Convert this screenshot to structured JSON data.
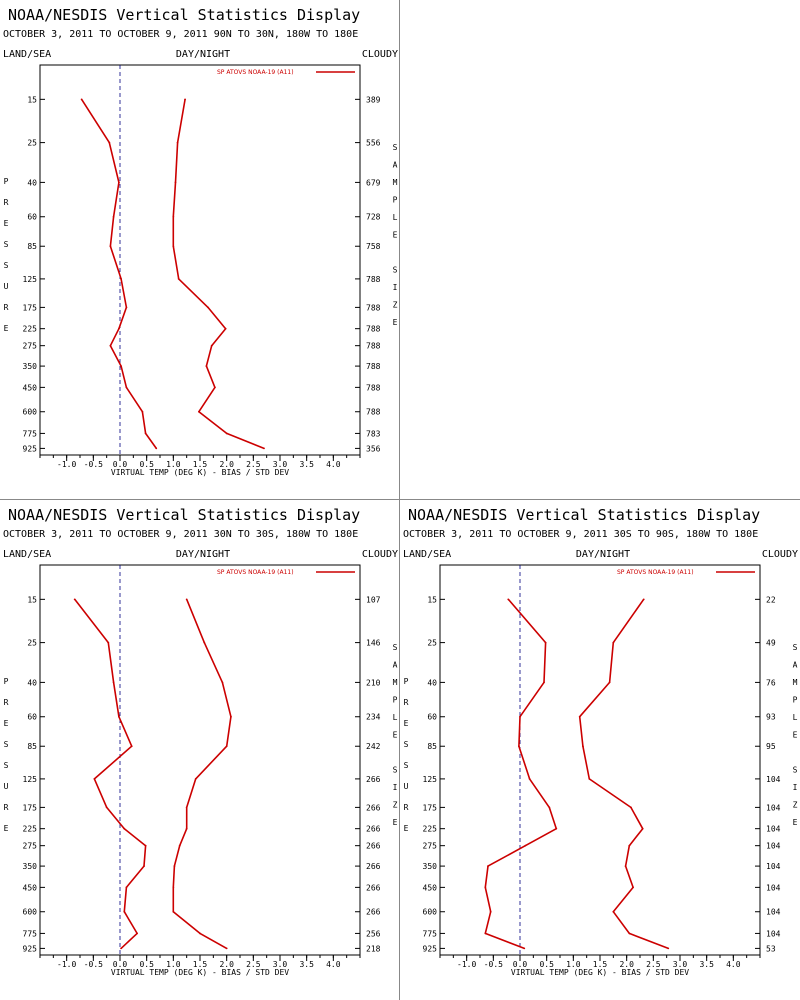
{
  "colors": {
    "series": "#cc0000",
    "axis": "#000000",
    "zero_line": "#000080",
    "divider": "#888888",
    "background": "#ffffff"
  },
  "common": {
    "title": "NOAA/NESDIS Vertical Statistics Display",
    "left_header": "LAND/SEA",
    "center_header": "DAY/NIGHT",
    "right_header": "CLOUDY",
    "xlabel": "VIRTUAL TEMP (DEG K) - BIAS / STD DEV",
    "ylabel": "PRESSURE",
    "right_label": "SAMPLE SIZE",
    "legend": "SP ATOVS NOAA-19 (A11)",
    "xticks": [
      "-1.0",
      "-0.5",
      "0.0",
      "0.5",
      "1.0",
      "1.5",
      "2.0",
      "2.5",
      "3.0",
      "3.5",
      "4.0"
    ]
  },
  "chart_data": [
    {
      "type": "line",
      "subtitle": "OCTOBER 3, 2011 TO OCTOBER 9, 2011  90N TO 30N, 180W TO 180E",
      "y": [
        15,
        25,
        40,
        60,
        85,
        125,
        175,
        225,
        275,
        350,
        450,
        600,
        775,
        925
      ],
      "y_scale": "log",
      "xlim": [
        -1.5,
        4.5
      ],
      "series": [
        {
          "name": "SP ATOVS NOAA-19 (A11)",
          "metric": "bias",
          "values": [
            -0.72,
            -0.2,
            -0.02,
            -0.12,
            -0.18,
            0.02,
            0.12,
            -0.02,
            -0.18,
            0.02,
            0.12,
            0.42,
            0.48,
            0.68
          ]
        },
        {
          "name": "SP ATOVS NOAA-19 (A11)",
          "metric": "std_dev",
          "values": [
            1.22,
            1.08,
            1.04,
            1.0,
            1.0,
            1.1,
            1.65,
            1.98,
            1.72,
            1.62,
            1.78,
            1.48,
            2.0,
            2.7
          ]
        }
      ],
      "sample_size": [
        "389",
        "556",
        "679",
        "728",
        "758",
        "788",
        "788",
        "788",
        "788",
        "788",
        "788",
        "788",
        "783",
        "356"
      ]
    },
    {
      "type": "line",
      "subtitle": "OCTOBER 3, 2011 TO OCTOBER 9, 2011  30N TO 30S, 180W TO 180E",
      "y": [
        15,
        25,
        40,
        60,
        85,
        125,
        175,
        225,
        275,
        350,
        450,
        600,
        775,
        925
      ],
      "y_scale": "log",
      "xlim": [
        -1.5,
        4.5
      ],
      "series": [
        {
          "name": "SP ATOVS NOAA-19 (A11)",
          "metric": "bias",
          "values": [
            -0.85,
            -0.22,
            -0.12,
            -0.02,
            0.22,
            -0.48,
            -0.25,
            0.08,
            0.48,
            0.45,
            0.12,
            0.08,
            0.32,
            0.02
          ]
        },
        {
          "name": "SP ATOVS NOAA-19 (A11)",
          "metric": "std_dev",
          "values": [
            1.25,
            1.58,
            1.92,
            2.08,
            2.0,
            1.42,
            1.25,
            1.25,
            1.12,
            1.02,
            1.0,
            1.0,
            1.5,
            2.0
          ]
        }
      ],
      "sample_size": [
        "107",
        "146",
        "210",
        "234",
        "242",
        "266",
        "266",
        "266",
        "266",
        "266",
        "266",
        "266",
        "256",
        "218"
      ]
    },
    {
      "type": "line",
      "subtitle": "OCTOBER 3, 2011 TO OCTOBER 9, 2011  30S TO 90S, 180W TO 180E",
      "y": [
        15,
        25,
        40,
        60,
        85,
        125,
        175,
        225,
        275,
        350,
        450,
        600,
        775,
        925
      ],
      "y_scale": "log",
      "xlim": [
        -1.5,
        4.5
      ],
      "series": [
        {
          "name": "SP ATOVS NOAA-19 (A11)",
          "metric": "bias",
          "values": [
            -0.22,
            0.48,
            0.45,
            0.0,
            -0.02,
            0.18,
            0.55,
            0.68,
            0.1,
            -0.6,
            -0.65,
            -0.55,
            -0.65,
            0.08
          ]
        },
        {
          "name": "SP ATOVS NOAA-19 (A11)",
          "metric": "std_dev",
          "values": [
            2.32,
            1.75,
            1.68,
            1.12,
            1.18,
            1.3,
            2.08,
            2.3,
            2.05,
            1.98,
            2.12,
            1.75,
            2.05,
            2.78
          ]
        }
      ],
      "sample_size": [
        "22",
        "49",
        "76",
        "93",
        "95",
        "104",
        "104",
        "104",
        "104",
        "104",
        "104",
        "104",
        "104",
        "53"
      ]
    }
  ]
}
